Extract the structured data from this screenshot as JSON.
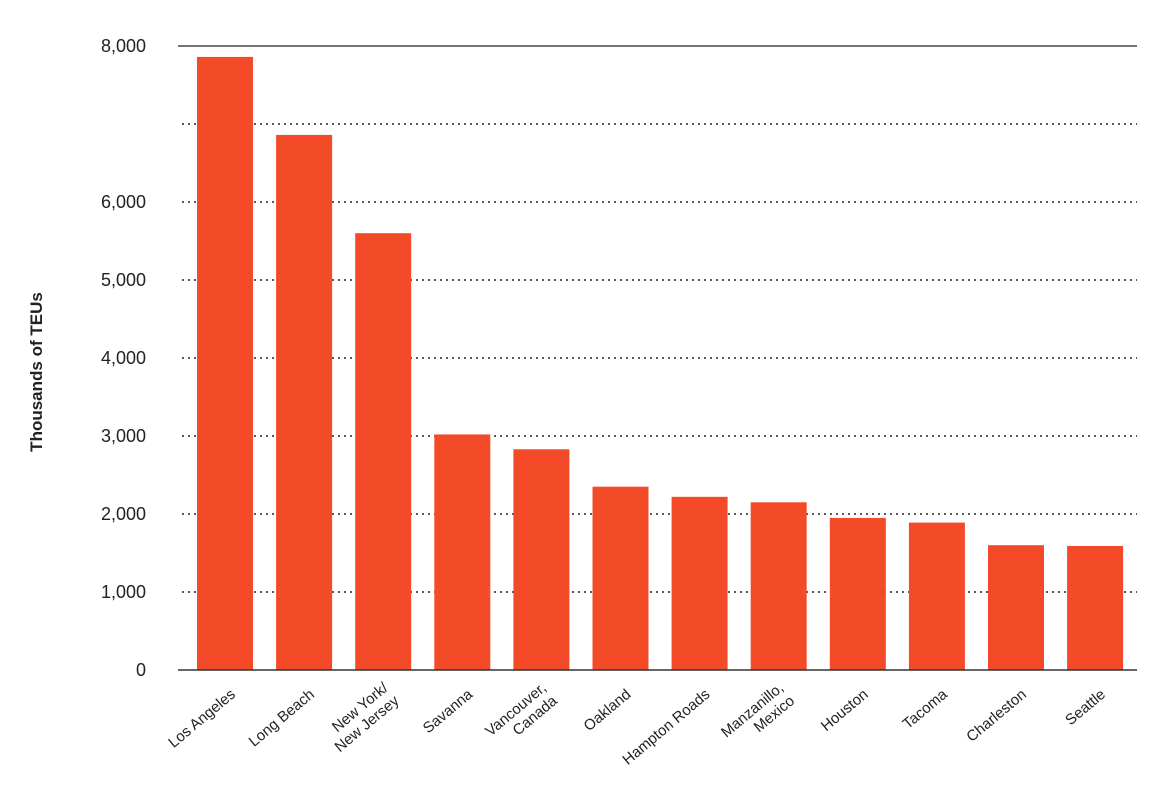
{
  "chart_data": {
    "type": "bar",
    "title": "",
    "xlabel": "",
    "ylabel": "Thousands of TEUs",
    "ylim": [
      0,
      8000
    ],
    "y_tick_labels": [
      "0",
      "1,000",
      "2,000",
      "3,000",
      "4,000",
      "5,000",
      "6,000",
      "8,000"
    ],
    "categories": [
      [
        "Los Angeles"
      ],
      [
        "Long Beach"
      ],
      [
        "New York/",
        "New Jersey"
      ],
      [
        "Savanna"
      ],
      [
        "Vancouver,",
        "Canada"
      ],
      [
        "Oakland"
      ],
      [
        "Hampton Roads"
      ],
      [
        "Manzanillo,",
        "Mexico"
      ],
      [
        "Houston"
      ],
      [
        "Tacoma"
      ],
      [
        "Charleston"
      ],
      [
        "Seattle"
      ]
    ],
    "values": [
      7860,
      6860,
      5600,
      3020,
      2830,
      2350,
      2220,
      2150,
      1950,
      1890,
      1600,
      1590
    ],
    "grid": true,
    "legend": "none",
    "colors": {
      "bar": "#f34b27",
      "grid": "#222222",
      "axis": "#333333"
    }
  }
}
